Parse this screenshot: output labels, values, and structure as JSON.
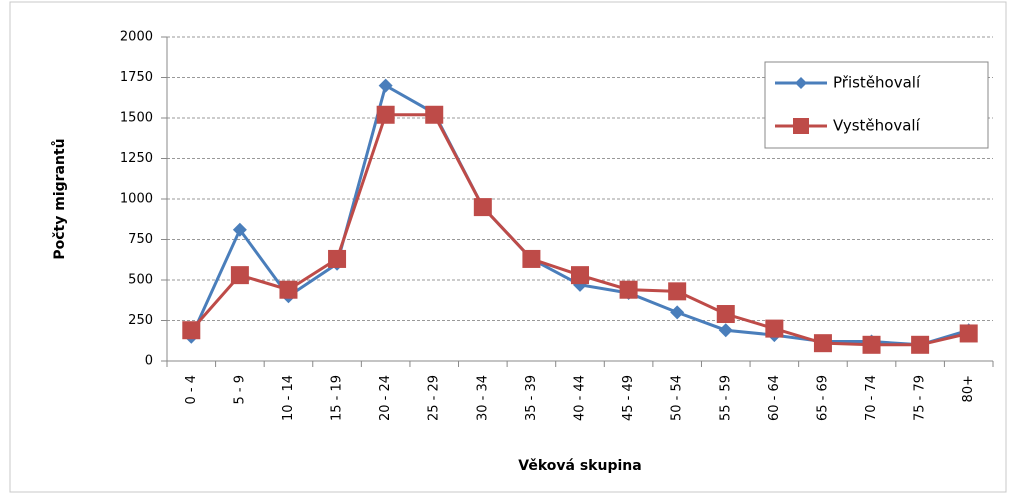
{
  "chart_data": {
    "type": "line",
    "x_label": "Věková skupina",
    "y_label": "Počty migrantů",
    "categories": [
      "0 - 4",
      "5 - 9",
      "10 - 14",
      "15 - 19",
      "20 - 24",
      "25 - 29",
      "30 - 34",
      "35 - 39",
      "40 - 44",
      "45 - 49",
      "50 - 54",
      "55 - 59",
      "60 - 64",
      "65 - 69",
      "70 - 74",
      "75 - 79",
      "80+"
    ],
    "series": [
      {
        "name": "Přistěhovalí",
        "color": "#4a7ebb",
        "marker": "diamond",
        "values": [
          150,
          810,
          400,
          600,
          1700,
          1530,
          950,
          630,
          470,
          420,
          300,
          190,
          160,
          120,
          120,
          100,
          190
        ]
      },
      {
        "name": "Vystěhovalí",
        "color": "#be4b48",
        "marker": "square",
        "values": [
          190,
          530,
          440,
          630,
          1520,
          1520,
          950,
          630,
          530,
          440,
          430,
          290,
          200,
          110,
          100,
          100,
          170
        ]
      }
    ],
    "ylim": [
      0,
      2000
    ],
    "yticks": [
      0,
      250,
      500,
      750,
      1000,
      1250,
      1500,
      1750,
      2000
    ],
    "grid": true,
    "legend": "upper right"
  }
}
